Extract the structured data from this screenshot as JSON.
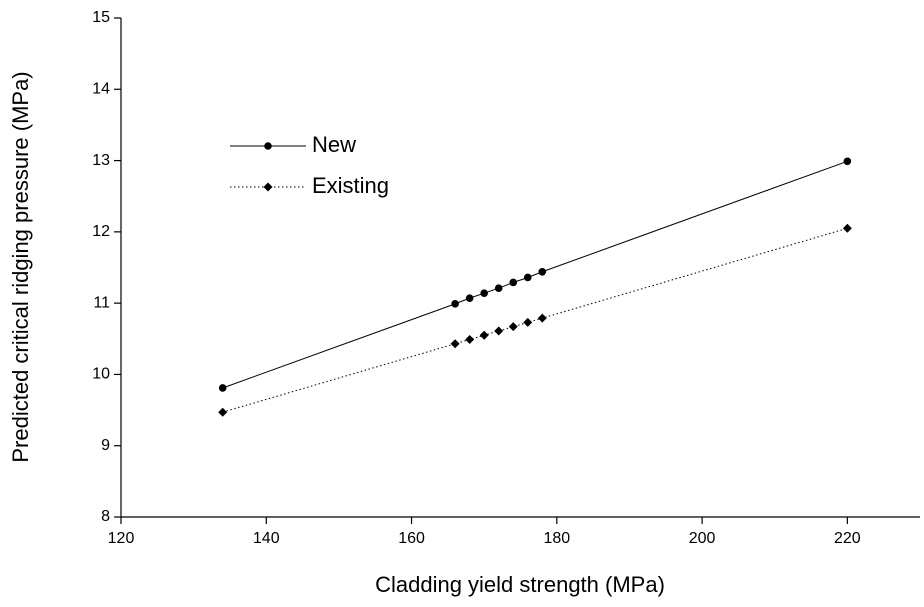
{
  "chart_data": {
    "type": "line",
    "xlabel": "Cladding yield strength (MPa)",
    "ylabel": "Predicted critical ridging pressure (MPa)",
    "xlim": [
      120,
      230
    ],
    "ylim": [
      8,
      15
    ],
    "xticks": [
      120,
      140,
      160,
      180,
      200,
      220
    ],
    "yticks": [
      8,
      9,
      10,
      11,
      12,
      13,
      14,
      15
    ],
    "legend": "upper left",
    "series": [
      {
        "name": "New",
        "color": "#000000",
        "line_style": "solid",
        "marker": "circle",
        "x": [
          134,
          166,
          168,
          170,
          172,
          174,
          176,
          178,
          220
        ],
        "values": [
          9.81,
          10.99,
          11.07,
          11.14,
          11.21,
          11.29,
          11.36,
          11.44,
          12.99
        ]
      },
      {
        "name": "Existing",
        "color": "#000000",
        "line_style": "dotted",
        "marker": "diamond",
        "x": [
          134,
          166,
          168,
          170,
          172,
          174,
          176,
          178,
          220
        ],
        "values": [
          9.47,
          10.43,
          10.49,
          10.55,
          10.61,
          10.67,
          10.73,
          10.79,
          12.05
        ]
      }
    ]
  }
}
